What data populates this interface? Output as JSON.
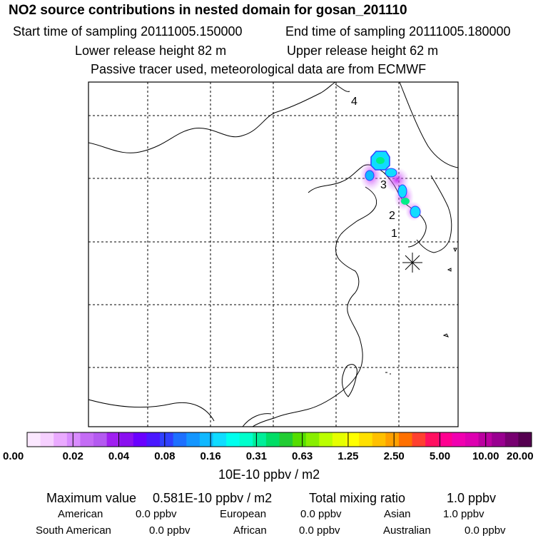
{
  "header": {
    "title": "NO2 source contributions in nested domain for gosan_201110",
    "start_time": "Start time of sampling 20111005.150000",
    "end_time": "End time of sampling 20111005.180000",
    "lower_height": "Lower release height   82 m",
    "upper_height": "Upper release height   62 m",
    "note": "Passive tracer used, meteorological data are from ECMWF"
  },
  "map": {
    "markers": [
      "4",
      "3",
      "2",
      "1"
    ],
    "receptor": "gosan"
  },
  "colorbar": {
    "colors": [
      "#fbe8ff",
      "#f6d0ff",
      "#eaaaff",
      "#d98cff",
      "#c46cf5",
      "#b45af0",
      "#a020f0",
      "#8a10f0",
      "#6a00ff",
      "#4a18ff",
      "#3040ff",
      "#1e70ff",
      "#1496ff",
      "#10b8ff",
      "#10dcff",
      "#00ffee",
      "#00ffcc",
      "#00ee99",
      "#00dd66",
      "#22cc33",
      "#55dd00",
      "#88ee00",
      "#bbff00",
      "#e6ff00",
      "#ffff00",
      "#ffe000",
      "#ffc000",
      "#ffa000",
      "#ff7000",
      "#ff4030",
      "#ff1060",
      "#ff0090",
      "#f000b0",
      "#dd00b0",
      "#bb00a0",
      "#990090",
      "#770070",
      "#550050"
    ],
    "labels": [
      "0.00",
      "0.02",
      "0.04",
      "0.08",
      "0.16",
      "0.31",
      "0.63",
      "1.25",
      "2.50",
      "5.00",
      "10.00",
      "20.00"
    ],
    "unit": "10E-10 ppbv / m2"
  },
  "summary": {
    "max_label": "Maximum value",
    "max_value": "0.581E-10 ppbv / m2",
    "total_label": "Total mixing ratio",
    "total_value": "1.0 ppbv",
    "american_label": "American",
    "american_value": "0.0 ppbv",
    "european_label": "European",
    "european_value": "0.0 ppbv",
    "asian_label": "Asian",
    "asian_value": "1.0 ppbv",
    "south_american_label": "South American",
    "south_american_value": "0.0 ppbv",
    "african_label": "African",
    "african_value": "0.0 ppbv",
    "australian_label": "Australian",
    "australian_value": "0.0 ppbv"
  }
}
